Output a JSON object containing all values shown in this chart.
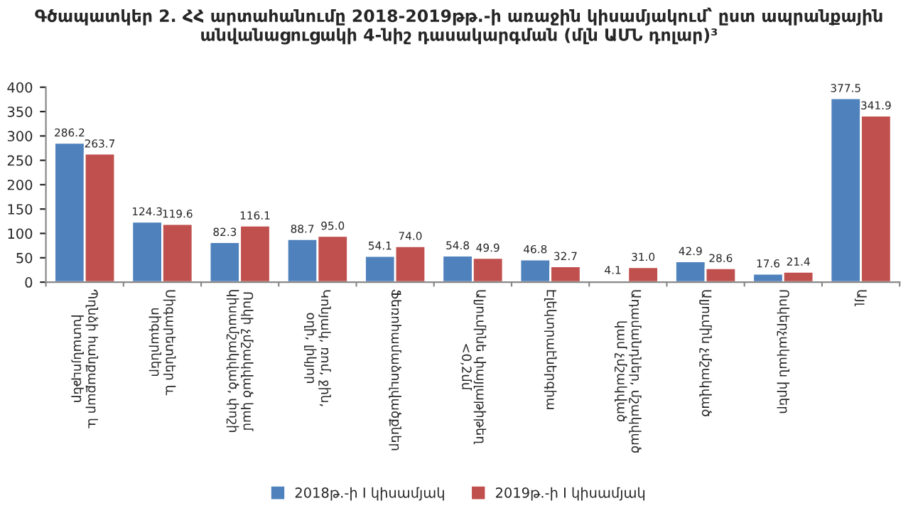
{
  "chart_data": {
    "type": "bar",
    "title": "Գծապատկեր 2. ՀՀ արտահանումը 2018-2019թթ.-ի առաջին կիսամյակում՝ ըստ ապրանքային անվանացուցակի 4-նիշ դասակարգման (մլն ԱՄՆ դոլար)³",
    "categories": [
      "Պղնձի հանքաքար և խտանյութեր",
      "Սիգարետներ և սիգարներ",
      "Ոսկի չմշակված կամ կիսամշակված, փոշի",
      "Կոնյակ, ռոմ, ջին, օղի, լիկյոր",
      "Ֆեռոհամաձուլվածքներ",
      "Ալյումինե փայլաթիթեղ <0,2մմ",
      "Էլեկտրաէներգիա",
      "Ադամանդներ, մշակված կամ չմշակված",
      "Ալյումին չմշակված",
      "Ոսկերչական իրեր",
      "Այլ"
    ],
    "series": [
      {
        "name": "2018թ.-ի I կիսամյակ",
        "color": "#4f81bd",
        "values": [
          286.2,
          124.3,
          82.3,
          88.7,
          54.1,
          54.8,
          46.8,
          4.1,
          42.9,
          17.6,
          377.5
        ]
      },
      {
        "name": "2019թ.-ի I կիսամյակ",
        "color": "#c0504d",
        "values": [
          263.7,
          119.6,
          116.1,
          95.0,
          74.0,
          49.9,
          32.7,
          31.0,
          28.6,
          21.4,
          341.9
        ],
        "value_labels": [
          "263.7",
          "119.6",
          "116.1",
          "95.0",
          "74.0",
          "49.9",
          "32.7",
          "31.0",
          "28.6",
          "21.4",
          "341.9"
        ]
      }
    ],
    "ylim": [
      0,
      400
    ],
    "yticks": [
      0,
      50,
      100,
      150,
      200,
      250,
      300,
      350,
      400
    ],
    "data_labels": true,
    "legend": "bottom",
    "grid": false
  }
}
